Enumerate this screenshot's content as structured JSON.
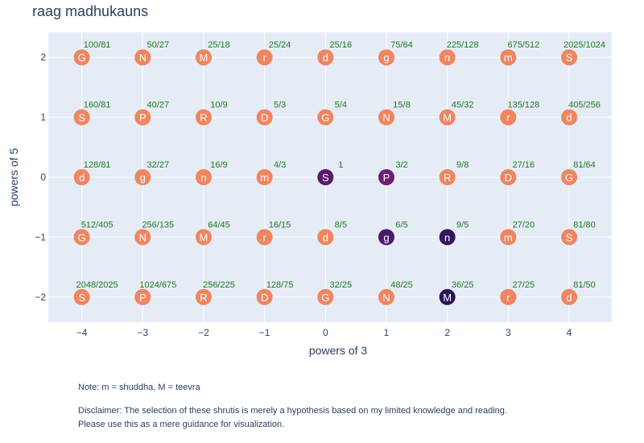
{
  "page_title": "raag madhukauns",
  "chart_data": {
    "type": "scatter",
    "title": "raag madhukauns",
    "xlabel": "powers of 3",
    "ylabel": "powers of 5",
    "xlim": [
      -4.55,
      4.7
    ],
    "ylim": [
      -2.42,
      2.42
    ],
    "xticks": [
      -4,
      -3,
      -2,
      -1,
      0,
      1,
      2,
      3,
      4
    ],
    "xtick_labels": [
      "−4",
      "−3",
      "−2",
      "−1",
      "0",
      "1",
      "2",
      "3",
      "4"
    ],
    "yticks": [
      2,
      1,
      0,
      -1,
      -2
    ],
    "ytick_labels": [
      "2",
      "1",
      "0",
      "−1",
      "−2"
    ],
    "grid": true,
    "legend": "none",
    "colors": {
      "plot_bg": "#e5ecf6",
      "grid": "#ffffff",
      "unselected_marker": "#f0855f",
      "ratio_label": "#1f7a1f",
      "marker_text": "#ffffff",
      "axis_text": "#2a3f5f",
      "selected_S": "#5a1a6e",
      "selected_P": "#6a1f70",
      "selected_R": "#f0855f",
      "selected_g": "#4a1a6e",
      "selected_n": "#33155e",
      "selected_M": "#2c1458"
    },
    "rows": [
      {
        "y": 2,
        "points": [
          {
            "x": -4,
            "note": "G",
            "ratio": "100/81",
            "selected": false
          },
          {
            "x": -3,
            "note": "N",
            "ratio": "50/27",
            "selected": false
          },
          {
            "x": -2,
            "note": "M",
            "ratio": "25/18",
            "selected": false
          },
          {
            "x": -1,
            "note": "r",
            "ratio": "25/24",
            "selected": false
          },
          {
            "x": 0,
            "note": "d",
            "ratio": "25/16",
            "selected": false
          },
          {
            "x": 1,
            "note": "g",
            "ratio": "75/64",
            "selected": false
          },
          {
            "x": 2,
            "note": "n",
            "ratio": "225/128",
            "selected": false
          },
          {
            "x": 3,
            "note": "m",
            "ratio": "675/512",
            "selected": false
          },
          {
            "x": 4,
            "note": "S",
            "ratio": "2025/1024",
            "selected": false
          }
        ]
      },
      {
        "y": 1,
        "points": [
          {
            "x": -4,
            "note": "S",
            "ratio": "160/81",
            "selected": false
          },
          {
            "x": -3,
            "note": "P",
            "ratio": "40/27",
            "selected": false
          },
          {
            "x": -2,
            "note": "R",
            "ratio": "10/9",
            "selected": false
          },
          {
            "x": -1,
            "note": "D",
            "ratio": "5/3",
            "selected": false
          },
          {
            "x": 0,
            "note": "G",
            "ratio": "5/4",
            "selected": false
          },
          {
            "x": 1,
            "note": "N",
            "ratio": "15/8",
            "selected": false
          },
          {
            "x": 2,
            "note": "M",
            "ratio": "45/32",
            "selected": false
          },
          {
            "x": 3,
            "note": "r",
            "ratio": "135/128",
            "selected": false
          },
          {
            "x": 4,
            "note": "d",
            "ratio": "405/256",
            "selected": false
          }
        ]
      },
      {
        "y": 0,
        "points": [
          {
            "x": -4,
            "note": "d",
            "ratio": "128/81",
            "selected": false
          },
          {
            "x": -3,
            "note": "g",
            "ratio": "32/27",
            "selected": false
          },
          {
            "x": -2,
            "note": "n",
            "ratio": "16/9",
            "selected": false
          },
          {
            "x": -1,
            "note": "m",
            "ratio": "4/3",
            "selected": false
          },
          {
            "x": 0,
            "note": "S",
            "ratio": "1",
            "selected": true,
            "color": "#5a1a6e"
          },
          {
            "x": 1,
            "note": "P",
            "ratio": "3/2",
            "selected": true,
            "color": "#6a1f70"
          },
          {
            "x": 2,
            "note": "R",
            "ratio": "9/8",
            "selected": false
          },
          {
            "x": 3,
            "note": "D",
            "ratio": "27/16",
            "selected": false
          },
          {
            "x": 4,
            "note": "G",
            "ratio": "81/64",
            "selected": false
          }
        ]
      },
      {
        "y": -1,
        "points": [
          {
            "x": -4,
            "note": "G",
            "ratio": "512/405",
            "selected": false
          },
          {
            "x": -3,
            "note": "N",
            "ratio": "256/135",
            "selected": false
          },
          {
            "x": -2,
            "note": "M",
            "ratio": "64/45",
            "selected": false
          },
          {
            "x": -1,
            "note": "r",
            "ratio": "16/15",
            "selected": false
          },
          {
            "x": 0,
            "note": "d",
            "ratio": "8/5",
            "selected": false
          },
          {
            "x": 1,
            "note": "g",
            "ratio": "6/5",
            "selected": true,
            "color": "#4a1a6e"
          },
          {
            "x": 2,
            "note": "n",
            "ratio": "9/5",
            "selected": true,
            "color": "#33155e"
          },
          {
            "x": 3,
            "note": "m",
            "ratio": "27/20",
            "selected": false
          },
          {
            "x": 4,
            "note": "S",
            "ratio": "81/80",
            "selected": false
          }
        ]
      },
      {
        "y": -2,
        "points": [
          {
            "x": -4,
            "note": "S",
            "ratio": "2048/2025",
            "selected": false
          },
          {
            "x": -3,
            "note": "P",
            "ratio": "1024/675",
            "selected": false
          },
          {
            "x": -2,
            "note": "R",
            "ratio": "256/225",
            "selected": false
          },
          {
            "x": -1,
            "note": "D",
            "ratio": "128/75",
            "selected": false
          },
          {
            "x": 0,
            "note": "G",
            "ratio": "32/25",
            "selected": false
          },
          {
            "x": 1,
            "note": "N",
            "ratio": "48/25",
            "selected": false
          },
          {
            "x": 2,
            "note": "M",
            "ratio": "36/25",
            "selected": true,
            "color": "#2c1458"
          },
          {
            "x": 3,
            "note": "r",
            "ratio": "27/25",
            "selected": false
          },
          {
            "x": 4,
            "note": "d",
            "ratio": "81/50",
            "selected": false
          }
        ]
      }
    ]
  },
  "notes": {
    "note_line": "Note: m = shuddha, M = teevra",
    "disclaimer_line1": "Disclaimer: The selection of these shrutis is merely a hypothesis based on my limited knowledge and reading.",
    "disclaimer_line2": "Please use this as a mere guidance for visualization."
  }
}
